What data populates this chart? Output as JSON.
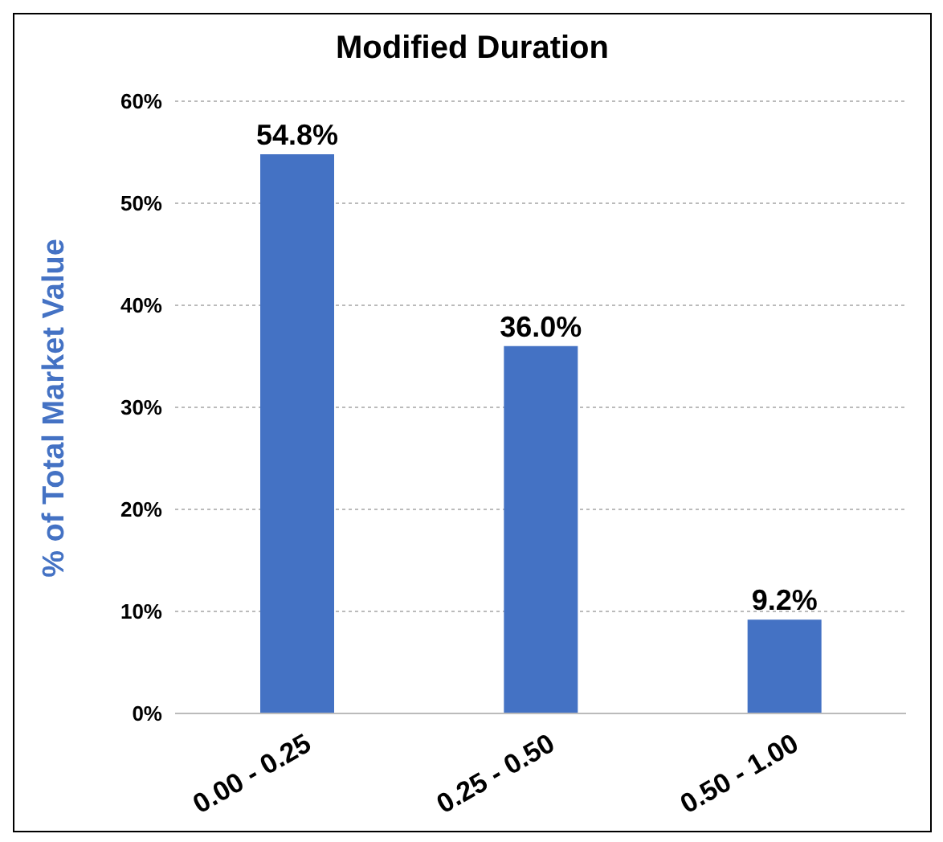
{
  "chart_data": {
    "type": "bar",
    "title": "Modified Duration",
    "ylabel": "% of Total Market Value",
    "categories": [
      "0.00 - 0.25",
      "0.25 - 0.50",
      "0.50 - 1.00"
    ],
    "values": [
      54.8,
      36.0,
      9.2
    ],
    "color": "#4472c4",
    "value_labels": [
      "54.8%",
      "36.0%",
      "9.2%"
    ],
    "ylim": [
      0,
      60
    ],
    "yticks": [
      {
        "value": 0,
        "label": "0%"
      },
      {
        "value": 10,
        "label": "10%"
      },
      {
        "value": 20,
        "label": "20%"
      },
      {
        "value": 30,
        "label": "30%"
      },
      {
        "value": 40,
        "label": "40%"
      },
      {
        "value": 50,
        "label": "50%"
      },
      {
        "value": 60,
        "label": "60%"
      }
    ],
    "grid": "y"
  }
}
